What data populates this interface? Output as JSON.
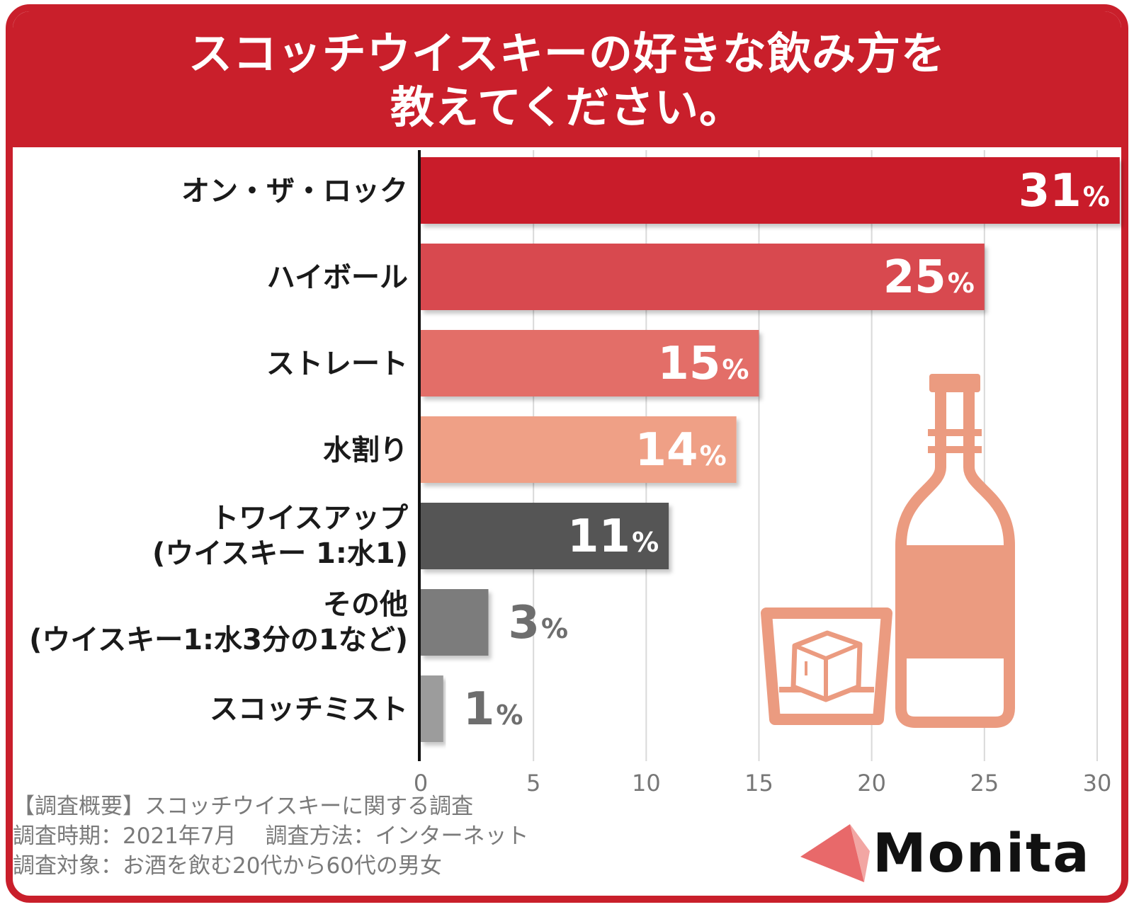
{
  "title": {
    "line1": "スコッチウイスキーの好きな飲み方を",
    "line2": "教えてください。"
  },
  "chart_data": {
    "type": "bar",
    "orientation": "horizontal",
    "title": "スコッチウイスキーの好きな飲み方を教えてください。",
    "categories": [
      "オン・ザ・ロック",
      "ハイボール",
      "ストレート",
      "水割り",
      "トワイスアップ\n(ウイスキー 1:水1)",
      "その他\n(ウイスキー1:水3分の1など)",
      "スコッチミスト"
    ],
    "values": [
      31,
      25,
      15,
      14,
      11,
      3,
      1
    ],
    "value_labels": [
      "31",
      "25",
      "15",
      "14",
      "11",
      "3",
      "1"
    ],
    "value_unit": "%",
    "xlim": [
      0,
      30
    ],
    "xticks": [
      "0",
      "5",
      "10",
      "15",
      "20",
      "25",
      "30"
    ],
    "grid": true,
    "bar_colors": [
      "#c91f2b",
      "#d8484f",
      "#e36e67",
      "#efa086",
      "#545454",
      "#7c7c7c",
      "#9c9c9c"
    ],
    "label_inside": [
      true,
      true,
      true,
      true,
      true,
      false,
      false
    ]
  },
  "notes": [
    "【調査概要】スコッチウイスキーに関する調査",
    "調査時期：2021年7月　 調査方法：インターネット",
    "調査対象：お酒を飲む20代から60代の男女"
  ],
  "brand": {
    "name": "Monita",
    "color": "#e8696a"
  },
  "illustration": {
    "icons": [
      "glass-with-ice-icon",
      "whisky-bottle-icon"
    ],
    "color": "#eb9b80"
  }
}
